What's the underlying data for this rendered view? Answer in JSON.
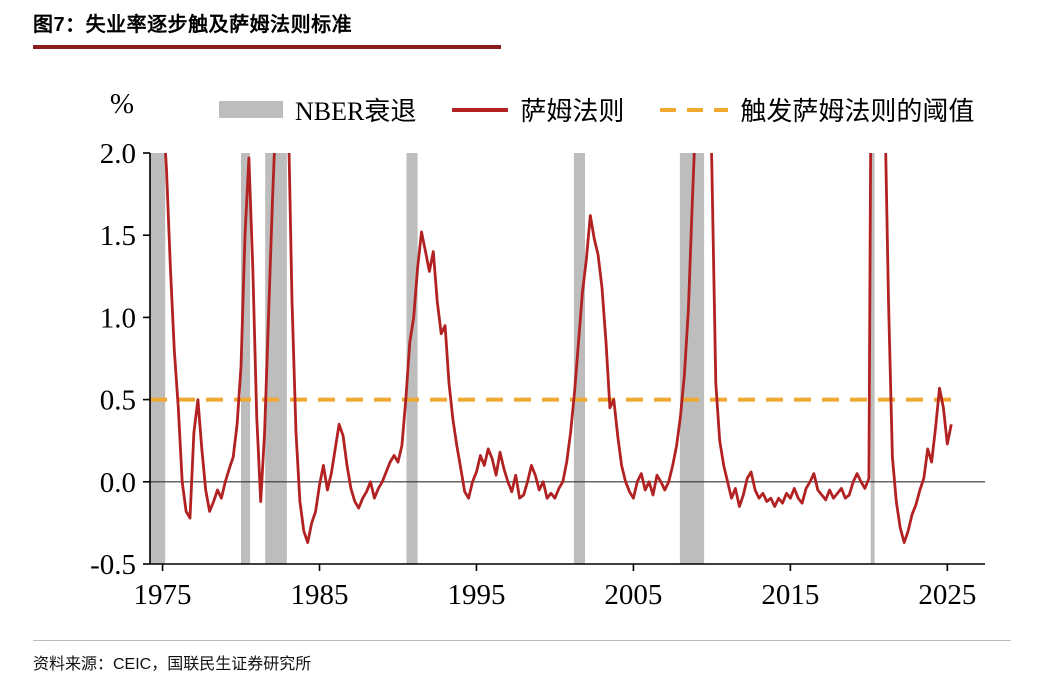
{
  "header": {
    "title": "图7：失业率逐步触及萨姆法则标准"
  },
  "footer": {
    "source": "资料来源：CEIC，国联民生证券研究所"
  },
  "colors": {
    "accent": "#8B1C1C",
    "line": "#B22222",
    "band": "#BDBDBD",
    "threshold": "#F0A830",
    "zero_line": "#333333"
  },
  "chart_data": {
    "type": "line",
    "title": "",
    "ylabel": "%",
    "xlabel": "",
    "ylim": [
      -0.5,
      2.0
    ],
    "xlim": [
      1974.2,
      2027.4
    ],
    "yticks": [
      2.0,
      1.5,
      1.0,
      0.5,
      0.0,
      -0.5
    ],
    "ytick_labels": [
      "2.0",
      "1.5",
      "1.0",
      "0.5",
      "0.0",
      "-0.5"
    ],
    "xticks": [
      1975,
      1985,
      1995,
      2005,
      2015,
      2025
    ],
    "grid": false,
    "legend_position": "top",
    "legend": [
      {
        "label": "NBER衰退",
        "type": "band",
        "color": "#BDBDBD"
      },
      {
        "label": "萨姆法则",
        "type": "line",
        "color": "#B22222"
      },
      {
        "label": "触发萨姆法则的阈值",
        "type": "dashed",
        "color": "#F0A830"
      }
    ],
    "threshold": 0.5,
    "recessions": [
      [
        1973.92,
        1975.17
      ],
      [
        1980.0,
        1980.58
      ],
      [
        1981.54,
        1982.92
      ],
      [
        1990.54,
        1991.25
      ],
      [
        2001.21,
        2001.92
      ],
      [
        2007.96,
        2009.5
      ],
      [
        2020.12,
        2020.37
      ]
    ],
    "series": [
      {
        "name": "萨姆法则",
        "color": "#B22222",
        "x_start": 1975.0,
        "x_step": 0.25,
        "y": [
          2.3,
          1.9,
          1.3,
          0.8,
          0.45,
          0.0,
          -0.18,
          -0.22,
          0.3,
          0.5,
          0.2,
          -0.05,
          -0.18,
          -0.12,
          -0.05,
          -0.1,
          0.0,
          0.08,
          0.15,
          0.35,
          0.7,
          1.5,
          1.97,
          1.3,
          0.4,
          -0.12,
          0.3,
          1.0,
          1.7,
          2.3,
          2.7,
          2.9,
          2.3,
          1.1,
          0.3,
          -0.12,
          -0.3,
          -0.37,
          -0.25,
          -0.18,
          -0.02,
          0.1,
          -0.05,
          0.05,
          0.2,
          0.35,
          0.28,
          0.1,
          -0.04,
          -0.12,
          -0.16,
          -0.1,
          -0.06,
          0.0,
          -0.1,
          -0.04,
          0.0,
          0.06,
          0.12,
          0.16,
          0.12,
          0.22,
          0.5,
          0.85,
          1.0,
          1.3,
          1.52,
          1.4,
          1.28,
          1.4,
          1.1,
          0.9,
          0.95,
          0.6,
          0.38,
          0.22,
          0.08,
          -0.06,
          -0.1,
          0.0,
          0.06,
          0.16,
          0.1,
          0.2,
          0.14,
          0.04,
          0.18,
          0.08,
          0.0,
          -0.06,
          0.04,
          -0.1,
          -0.08,
          0.0,
          0.1,
          0.04,
          -0.05,
          0.0,
          -0.1,
          -0.07,
          -0.1,
          -0.04,
          0.0,
          0.12,
          0.3,
          0.55,
          0.85,
          1.15,
          1.35,
          1.62,
          1.48,
          1.38,
          1.18,
          0.85,
          0.45,
          0.5,
          0.28,
          0.1,
          0.0,
          -0.06,
          -0.1,
          0.0,
          0.05,
          -0.05,
          0.0,
          -0.08,
          0.04,
          0.0,
          -0.05,
          0.0,
          0.1,
          0.22,
          0.4,
          0.65,
          1.05,
          1.7,
          2.3,
          2.8,
          3.2,
          3.0,
          1.9,
          0.6,
          0.25,
          0.1,
          0.0,
          -0.1,
          -0.04,
          -0.15,
          -0.08,
          0.02,
          0.06,
          -0.05,
          -0.1,
          -0.07,
          -0.12,
          -0.1,
          -0.15,
          -0.1,
          -0.13,
          -0.07,
          -0.1,
          -0.04,
          -0.1,
          -0.13,
          -0.04,
          0.0,
          0.05,
          -0.05,
          -0.08,
          -0.11,
          -0.05,
          -0.1,
          -0.07,
          -0.04,
          -0.1,
          -0.08,
          0.0,
          0.05,
          0.0,
          -0.04,
          0.02,
          4.5,
          5.5,
          3.5,
          2.4,
          1.1,
          0.15,
          -0.12,
          -0.28,
          -0.37,
          -0.3,
          -0.2,
          -0.14,
          -0.05,
          0.02,
          0.2,
          0.12,
          0.33,
          0.57,
          0.45,
          0.23,
          0.35
        ]
      }
    ]
  }
}
